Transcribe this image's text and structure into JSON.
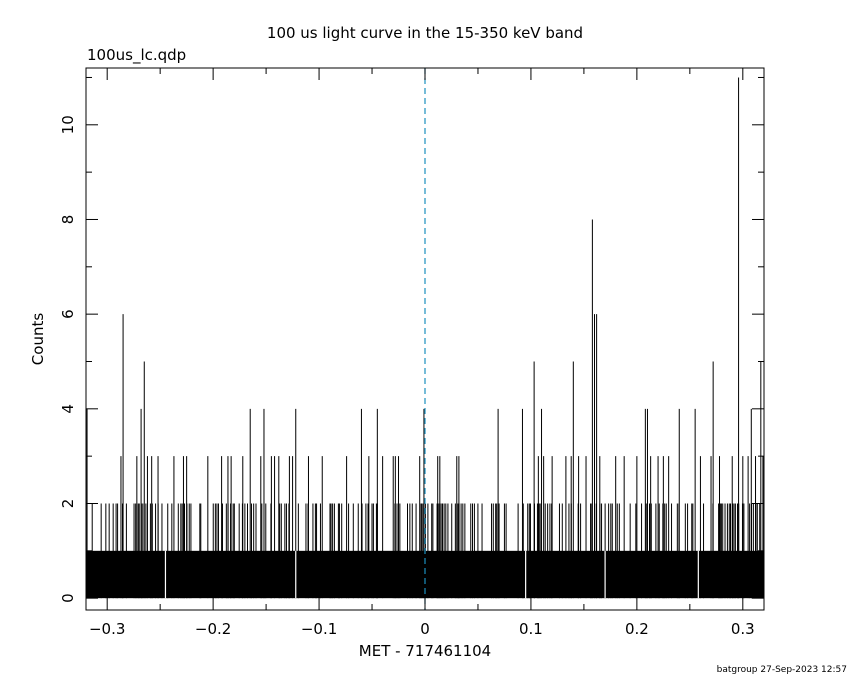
{
  "chart_data": {
    "type": "bar",
    "title": "100 us light curve in the 15-350 keV band",
    "subtitle": "100us_lc.qdp",
    "xlabel": "MET - 717461104",
    "ylabel": "Counts",
    "footer": "batgroup 27-Sep-2023 12:57",
    "xlim": [
      -0.32,
      0.32
    ],
    "ylim": [
      -0.25,
      11.2
    ],
    "bin_width": 0.0001,
    "x_ticks": [
      {
        "value": -0.3,
        "label": "−0.3"
      },
      {
        "value": -0.2,
        "label": "−0.2"
      },
      {
        "value": -0.1,
        "label": "−0.1"
      },
      {
        "value": 0,
        "label": "0"
      },
      {
        "value": 0.1,
        "label": "0.1"
      },
      {
        "value": 0.2,
        "label": "0.2"
      },
      {
        "value": 0.3,
        "label": "0.3"
      }
    ],
    "y_ticks": [
      {
        "value": 0,
        "label": "0"
      },
      {
        "value": 2,
        "label": "2"
      },
      {
        "value": 4,
        "label": "4"
      },
      {
        "value": 6,
        "label": "6"
      },
      {
        "value": 8,
        "label": "8"
      },
      {
        "value": 10,
        "label": "10"
      }
    ],
    "trigger_line": {
      "x": 0,
      "style": "dashed",
      "color": "#1a8fbf"
    },
    "baseline_counts": 1,
    "zero_count_bins": [
      -0.245,
      -0.122,
      0.095,
      0.17,
      0.258
    ],
    "peaks": [
      {
        "x": -0.319,
        "y": 4
      },
      {
        "x": -0.287,
        "y": 3
      },
      {
        "x": -0.285,
        "y": 6
      },
      {
        "x": -0.272,
        "y": 3
      },
      {
        "x": -0.268,
        "y": 4
      },
      {
        "x": -0.265,
        "y": 5
      },
      {
        "x": -0.262,
        "y": 3
      },
      {
        "x": -0.258,
        "y": 3
      },
      {
        "x": -0.252,
        "y": 3
      },
      {
        "x": -0.237,
        "y": 3
      },
      {
        "x": -0.228,
        "y": 3
      },
      {
        "x": -0.225,
        "y": 3
      },
      {
        "x": -0.205,
        "y": 3
      },
      {
        "x": -0.192,
        "y": 3
      },
      {
        "x": -0.186,
        "y": 3
      },
      {
        "x": -0.183,
        "y": 3
      },
      {
        "x": -0.172,
        "y": 3
      },
      {
        "x": -0.165,
        "y": 4
      },
      {
        "x": -0.155,
        "y": 3
      },
      {
        "x": -0.152,
        "y": 4
      },
      {
        "x": -0.145,
        "y": 3
      },
      {
        "x": -0.142,
        "y": 3
      },
      {
        "x": -0.138,
        "y": 3
      },
      {
        "x": -0.128,
        "y": 3
      },
      {
        "x": -0.125,
        "y": 3
      },
      {
        "x": -0.122,
        "y": 4
      },
      {
        "x": -0.11,
        "y": 3
      },
      {
        "x": -0.097,
        "y": 3
      },
      {
        "x": -0.074,
        "y": 3
      },
      {
        "x": -0.06,
        "y": 4
      },
      {
        "x": -0.053,
        "y": 3
      },
      {
        "x": -0.045,
        "y": 4
      },
      {
        "x": -0.04,
        "y": 3
      },
      {
        "x": -0.03,
        "y": 3
      },
      {
        "x": -0.028,
        "y": 3
      },
      {
        "x": -0.025,
        "y": 3
      },
      {
        "x": -0.005,
        "y": 3
      },
      {
        "x": -0.001,
        "y": 4
      },
      {
        "x": 0.012,
        "y": 3
      },
      {
        "x": 0.014,
        "y": 3
      },
      {
        "x": 0.03,
        "y": 3
      },
      {
        "x": 0.032,
        "y": 3
      },
      {
        "x": 0.069,
        "y": 4
      },
      {
        "x": 0.092,
        "y": 4
      },
      {
        "x": 0.103,
        "y": 5
      },
      {
        "x": 0.107,
        "y": 3
      },
      {
        "x": 0.11,
        "y": 4
      },
      {
        "x": 0.112,
        "y": 3
      },
      {
        "x": 0.12,
        "y": 3
      },
      {
        "x": 0.133,
        "y": 3
      },
      {
        "x": 0.138,
        "y": 3
      },
      {
        "x": 0.14,
        "y": 5
      },
      {
        "x": 0.145,
        "y": 3
      },
      {
        "x": 0.152,
        "y": 3
      },
      {
        "x": 0.158,
        "y": 8
      },
      {
        "x": 0.16,
        "y": 6
      },
      {
        "x": 0.162,
        "y": 6
      },
      {
        "x": 0.165,
        "y": 3
      },
      {
        "x": 0.18,
        "y": 3
      },
      {
        "x": 0.188,
        "y": 3
      },
      {
        "x": 0.2,
        "y": 3
      },
      {
        "x": 0.208,
        "y": 4
      },
      {
        "x": 0.21,
        "y": 4
      },
      {
        "x": 0.213,
        "y": 3
      },
      {
        "x": 0.22,
        "y": 3
      },
      {
        "x": 0.225,
        "y": 3
      },
      {
        "x": 0.23,
        "y": 3
      },
      {
        "x": 0.24,
        "y": 4
      },
      {
        "x": 0.255,
        "y": 4
      },
      {
        "x": 0.26,
        "y": 3
      },
      {
        "x": 0.27,
        "y": 3
      },
      {
        "x": 0.272,
        "y": 5
      },
      {
        "x": 0.278,
        "y": 3
      },
      {
        "x": 0.29,
        "y": 3
      },
      {
        "x": 0.296,
        "y": 11
      },
      {
        "x": 0.3,
        "y": 3
      },
      {
        "x": 0.305,
        "y": 3
      },
      {
        "x": 0.308,
        "y": 4
      },
      {
        "x": 0.312,
        "y": 3
      },
      {
        "x": 0.317,
        "y": 5
      },
      {
        "x": 0.319,
        "y": 3
      }
    ]
  }
}
